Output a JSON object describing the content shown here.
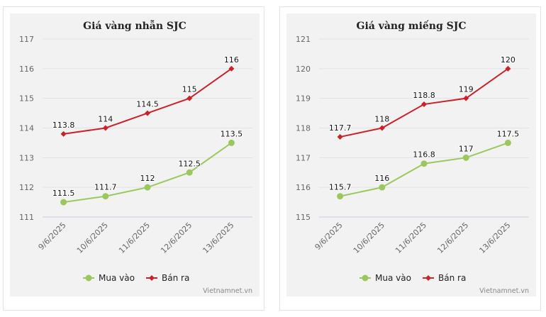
{
  "chart_data": [
    {
      "type": "line",
      "title": "Giá vàng nhẫn SJC",
      "categories": [
        "9/6/2025",
        "10/6/2025",
        "11/6/2025",
        "12/6/2025",
        "13/6/2025"
      ],
      "ylim": [
        111,
        117
      ],
      "yticks": [
        "111",
        "112",
        "113",
        "114",
        "115",
        "116",
        "117"
      ],
      "grid": true,
      "legend_position": "bottom",
      "series": [
        {
          "name": "Mua vào",
          "color": "#9bc85e",
          "marker": "circle",
          "values": [
            111.5,
            111.7,
            112,
            112.5,
            113.5
          ],
          "labels": [
            "111.5",
            "111.7",
            "112",
            "112.5",
            "113.5"
          ]
        },
        {
          "name": "Bán ra",
          "color": "#c8232a",
          "marker": "diamond",
          "values": [
            113.8,
            114,
            114.5,
            115,
            116
          ],
          "labels": [
            "113.8",
            "114",
            "114.5",
            "115",
            "116"
          ]
        }
      ],
      "watermark": "Vietnamnet.vn"
    },
    {
      "type": "line",
      "title": "Giá vàng miếng SJC",
      "categories": [
        "9/6/2025",
        "10/6/2025",
        "11/6/2025",
        "12/6/2025",
        "13/6/2025"
      ],
      "ylim": [
        115,
        121
      ],
      "yticks": [
        "115",
        "116",
        "117",
        "118",
        "119",
        "120",
        "121"
      ],
      "grid": true,
      "legend_position": "bottom",
      "series": [
        {
          "name": "Mua vào",
          "color": "#9bc85e",
          "marker": "circle",
          "values": [
            115.7,
            116,
            116.8,
            117,
            117.5
          ],
          "labels": [
            "115.7",
            "116",
            "116.8",
            "117",
            "117.5"
          ]
        },
        {
          "name": "Bán ra",
          "color": "#c8232a",
          "marker": "diamond",
          "values": [
            117.7,
            118,
            118.8,
            119,
            120
          ],
          "labels": [
            "117.7",
            "118",
            "118.8",
            "119",
            "120"
          ]
        }
      ],
      "watermark": "Vietnamnet.vn"
    }
  ]
}
